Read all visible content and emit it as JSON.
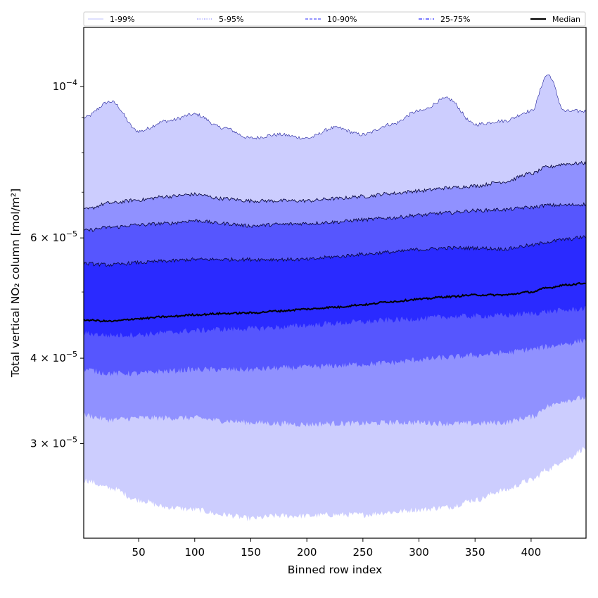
{
  "chart_data": {
    "type": "area",
    "title": "",
    "xlabel": "Binned row index",
    "ylabel": "Total vertical NO₂ column [mol/m²]",
    "xlim": [
      1,
      449
    ],
    "ylim": [
      2.18e-05,
      0.000122
    ],
    "yscale": "log",
    "x_ticks": [
      50,
      100,
      150,
      200,
      250,
      300,
      350,
      400
    ],
    "y_ticks": [
      {
        "value": 3e-05,
        "mantissa": "3",
        "exp": "−5"
      },
      {
        "value": 4e-05,
        "mantissa": "4",
        "exp": "−5"
      },
      {
        "value": 6e-05,
        "mantissa": "6",
        "exp": "−5"
      },
      {
        "value": 0.0001,
        "mantissa": "",
        "exp": "−4"
      }
    ],
    "legend_position": "top",
    "x": [
      1,
      25,
      50,
      75,
      100,
      125,
      150,
      175,
      200,
      225,
      250,
      275,
      300,
      325,
      350,
      375,
      400,
      415,
      430,
      449
    ],
    "bands": [
      {
        "name": "1-99%",
        "color": "#cccdfe",
        "line_style": "solid",
        "lower": [
          2.65e-05,
          2.58e-05,
          2.48e-05,
          2.42e-05,
          2.4e-05,
          2.36e-05,
          2.33e-05,
          2.35e-05,
          2.35e-05,
          2.36e-05,
          2.36e-05,
          2.38e-05,
          2.4e-05,
          2.42e-05,
          2.48e-05,
          2.56e-05,
          2.65e-05,
          2.75e-05,
          2.84e-05,
          2.95e-05
        ],
        "upper": [
          9e-05,
          9.5e-05,
          8.6e-05,
          8.9e-05,
          9.1e-05,
          8.7e-05,
          8.4e-05,
          8.5e-05,
          8.4e-05,
          8.7e-05,
          8.5e-05,
          8.8e-05,
          9.2e-05,
          9.6e-05,
          8.8e-05,
          8.9e-05,
          9.2e-05,
          0.000104,
          9.2e-05,
          9.2e-05
        ]
      },
      {
        "name": "5-95%",
        "color": "#9091ff",
        "line_style": "dotted",
        "lower": [
          3.3e-05,
          3.25e-05,
          3.27e-05,
          3.27e-05,
          3.27e-05,
          3.24e-05,
          3.22e-05,
          3.21e-05,
          3.2e-05,
          3.21e-05,
          3.21e-05,
          3.22e-05,
          3.22e-05,
          3.21e-05,
          3.21e-05,
          3.22e-05,
          3.28e-05,
          3.4e-05,
          3.47e-05,
          3.5e-05
        ],
        "upper": [
          6.6e-05,
          6.75e-05,
          6.82e-05,
          6.9e-05,
          6.95e-05,
          6.85e-05,
          6.8e-05,
          6.8e-05,
          6.8e-05,
          6.85e-05,
          6.9e-05,
          6.97e-05,
          7.03e-05,
          7.1e-05,
          7.15e-05,
          7.25e-05,
          7.45e-05,
          7.62e-05,
          7.7e-05,
          7.72e-05
        ]
      },
      {
        "name": "10-90%",
        "color": "#5656fe",
        "line_style": "dashed",
        "lower": [
          3.85e-05,
          3.8e-05,
          3.8e-05,
          3.83e-05,
          3.85e-05,
          3.85e-05,
          3.85e-05,
          3.87e-05,
          3.88e-05,
          3.9e-05,
          3.92e-05,
          3.94e-05,
          3.98e-05,
          4.01e-05,
          4.04e-05,
          4.07e-05,
          4.12e-05,
          4.16e-05,
          4.2e-05,
          4.25e-05
        ],
        "upper": [
          6.15e-05,
          6.22e-05,
          6.27e-05,
          6.3e-05,
          6.36e-05,
          6.3e-05,
          6.25e-05,
          6.28e-05,
          6.3e-05,
          6.33e-05,
          6.38e-05,
          6.42e-05,
          6.48e-05,
          6.53e-05,
          6.58e-05,
          6.6e-05,
          6.65e-05,
          6.7e-05,
          6.7e-05,
          6.72e-05
        ]
      },
      {
        "name": "25-75%",
        "color": "#2a2aff",
        "line_style": "dashdot",
        "lower": [
          4.35e-05,
          4.32e-05,
          4.33e-05,
          4.36e-05,
          4.39e-05,
          4.41e-05,
          4.42e-05,
          4.44e-05,
          4.47e-05,
          4.5e-05,
          4.52e-05,
          4.55e-05,
          4.57e-05,
          4.6e-05,
          4.61e-05,
          4.62e-05,
          4.65e-05,
          4.68e-05,
          4.7e-05,
          4.73e-05
        ],
        "upper": [
          5.5e-05,
          5.48e-05,
          5.52e-05,
          5.55e-05,
          5.58e-05,
          5.58e-05,
          5.58e-05,
          5.58e-05,
          5.58e-05,
          5.63e-05,
          5.68e-05,
          5.72e-05,
          5.77e-05,
          5.8e-05,
          5.8e-05,
          5.78e-05,
          5.85e-05,
          5.92e-05,
          5.97e-05,
          6.02e-05
        ]
      }
    ],
    "median": {
      "name": "Median",
      "color": "#000000",
      "line_style": "solid",
      "values": [
        4.55e-05,
        4.53e-05,
        4.57e-05,
        4.6e-05,
        4.63e-05,
        4.65e-05,
        4.66e-05,
        4.69e-05,
        4.72e-05,
        4.75e-05,
        4.79e-05,
        4.84e-05,
        4.88e-05,
        4.92e-05,
        4.95e-05,
        4.95e-05,
        5e-05,
        5.07e-05,
        5.12e-05,
        5.15e-05
      ]
    }
  }
}
